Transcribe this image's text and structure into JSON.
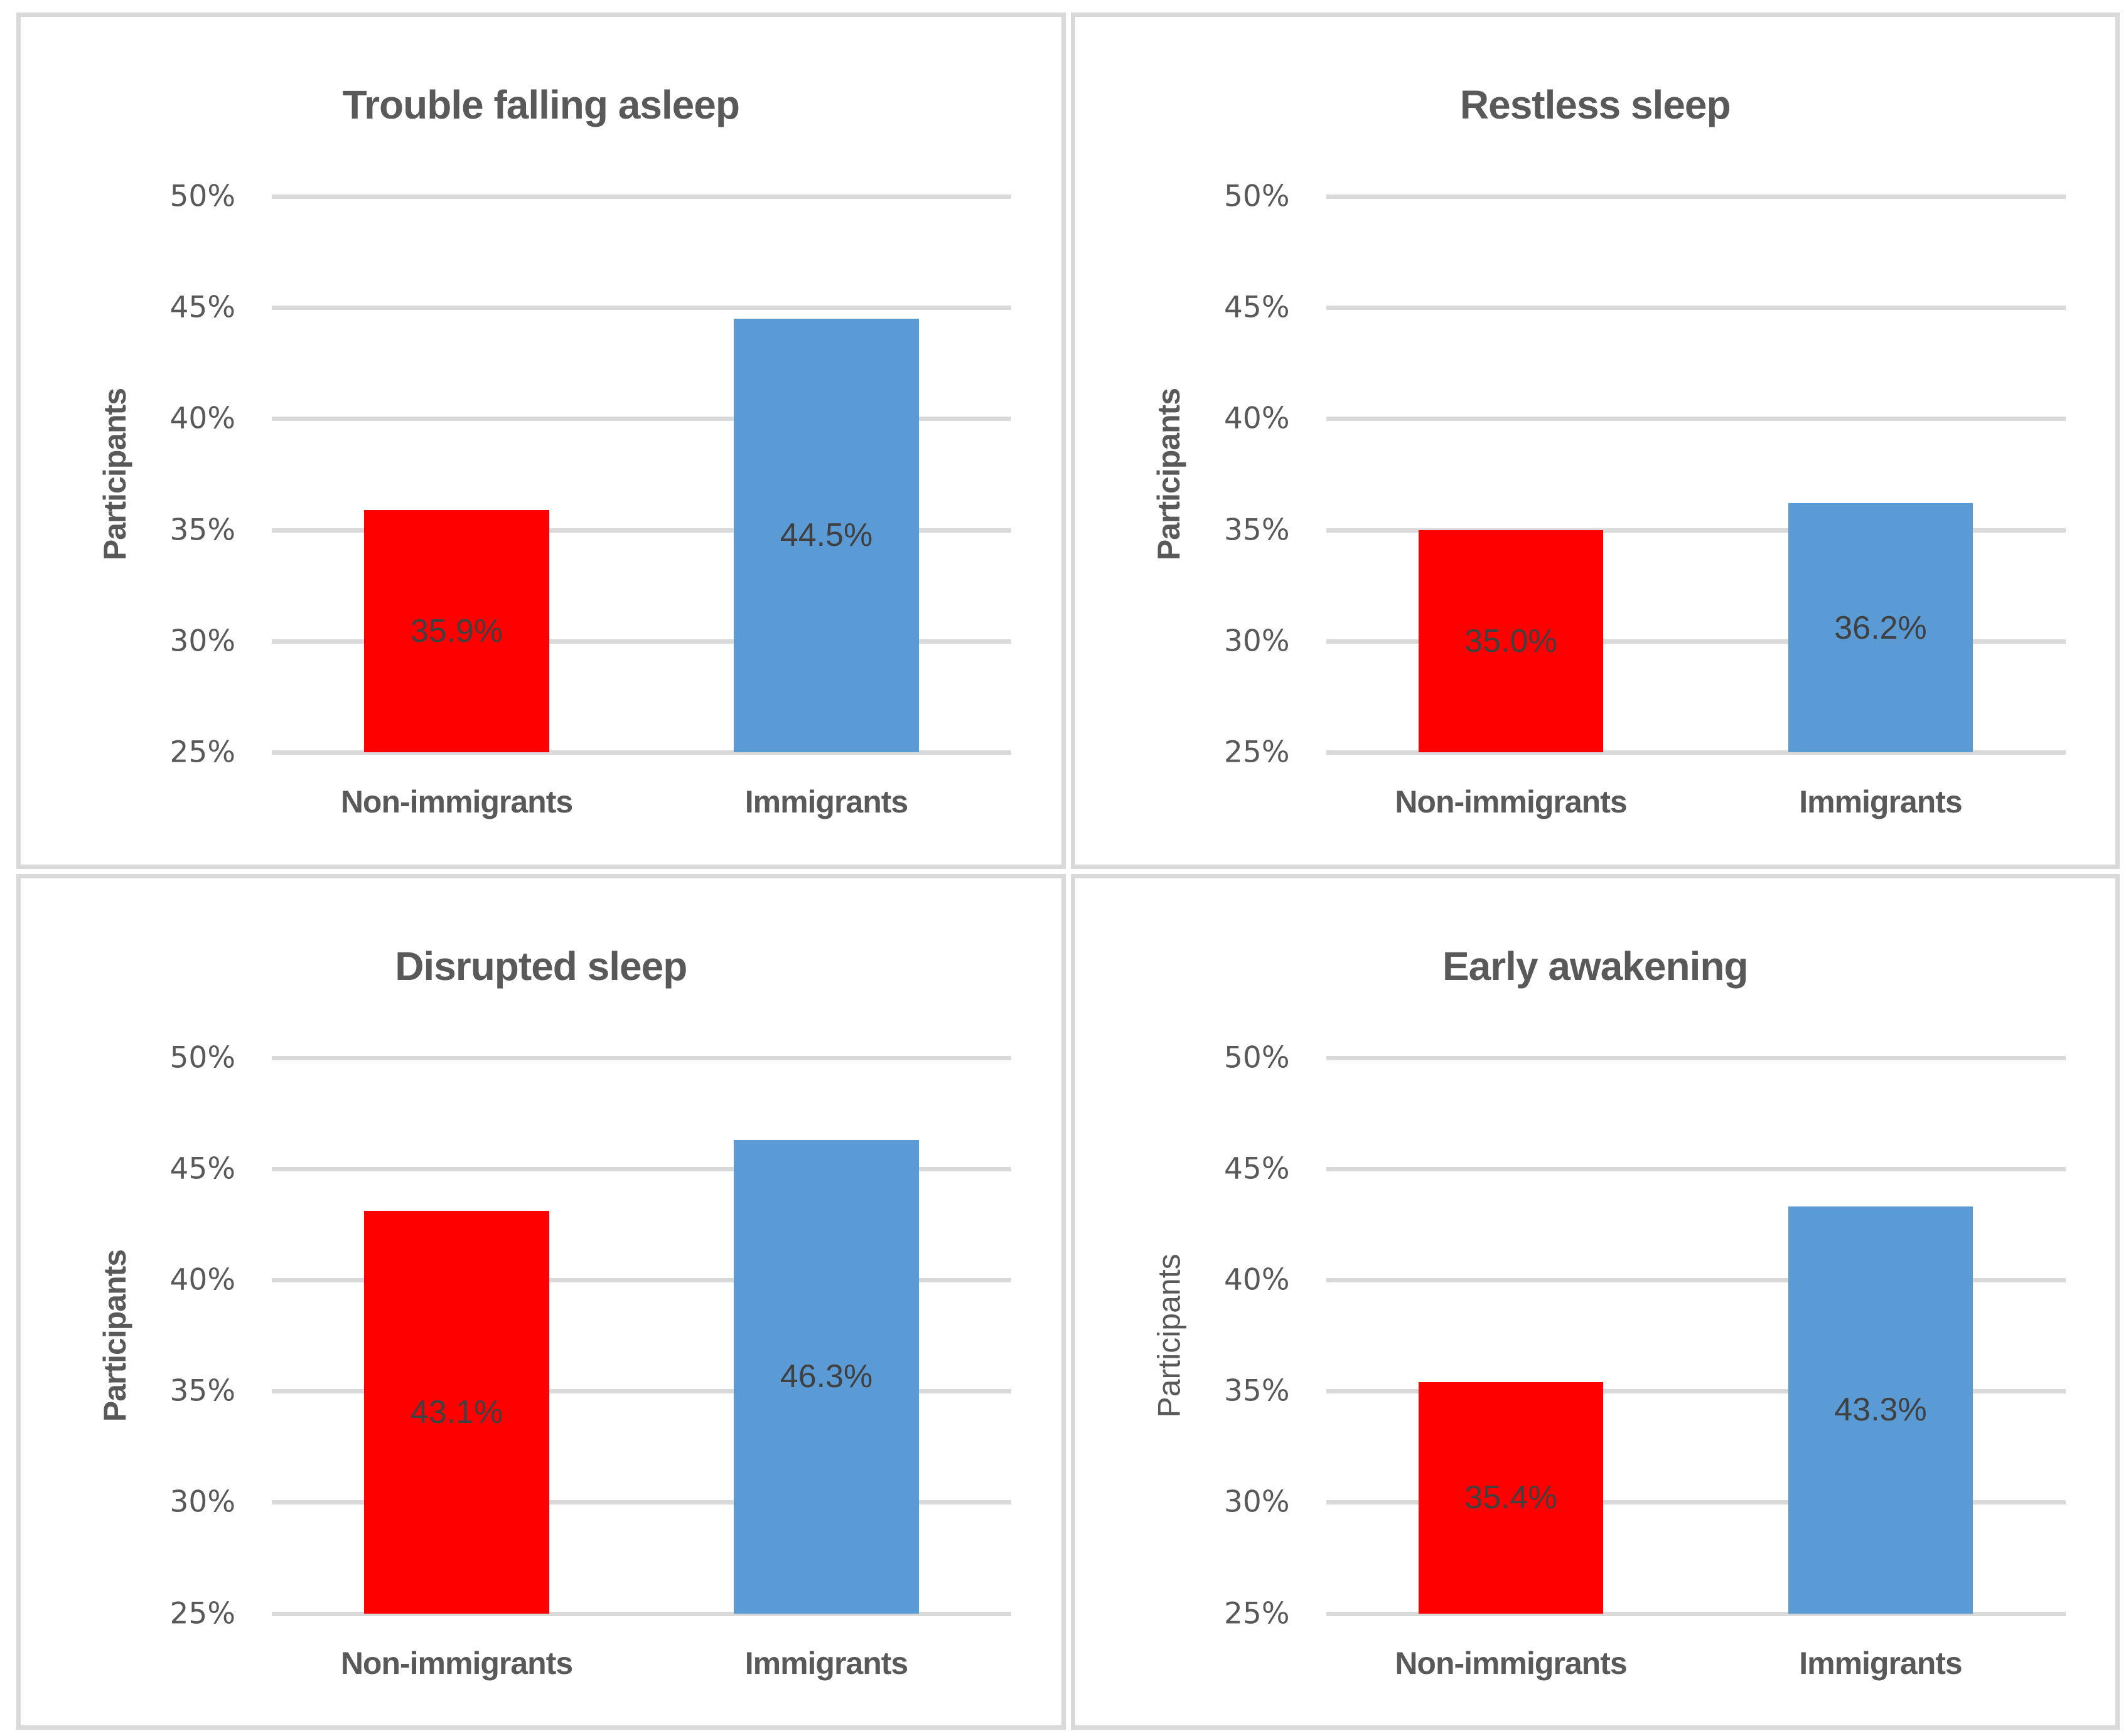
{
  "style": {
    "text_color": "#595959",
    "data_label_color": "#404040",
    "grid_color": "#D9D9D9",
    "panel_border_color": "#D9D9D9",
    "background": "#FFFFFF",
    "non_immigrants_color": "#FF0000",
    "immigrants_color": "#5B9BD5"
  },
  "chart_data": [
    {
      "type": "bar",
      "title": "Trouble falling asleep",
      "ylabel": "Participants",
      "ylabel_bold": true,
      "categories": [
        "Non-immigrants",
        "Immigrants"
      ],
      "values": [
        35.9,
        44.5
      ],
      "value_labels": [
        "35.9%",
        "44.5%"
      ],
      "bar_colors": [
        "#FF0000",
        "#5B9BD5"
      ],
      "ylim": [
        25,
        50
      ],
      "ytick_step": 5,
      "ytick_labels": [
        "25%",
        "30%",
        "35%",
        "40%",
        "45%",
        "50%"
      ],
      "grid": true,
      "legend": "none"
    },
    {
      "type": "bar",
      "title": "Restless sleep",
      "ylabel": "Participants",
      "ylabel_bold": true,
      "categories": [
        "Non-immigrants",
        "Immigrants"
      ],
      "values": [
        35.0,
        36.2
      ],
      "value_labels": [
        "35.0%",
        "36.2%"
      ],
      "bar_colors": [
        "#FF0000",
        "#5B9BD5"
      ],
      "ylim": [
        25,
        50
      ],
      "ytick_step": 5,
      "ytick_labels": [
        "25%",
        "30%",
        "35%",
        "40%",
        "45%",
        "50%"
      ],
      "grid": true,
      "legend": "none"
    },
    {
      "type": "bar",
      "title": "Disrupted sleep",
      "ylabel": "Participants",
      "ylabel_bold": true,
      "categories": [
        "Non-immigrants",
        "Immigrants"
      ],
      "values": [
        43.1,
        46.3
      ],
      "value_labels": [
        "43.1%",
        "46.3%"
      ],
      "bar_colors": [
        "#FF0000",
        "#5B9BD5"
      ],
      "ylim": [
        25,
        50
      ],
      "ytick_step": 5,
      "ytick_labels": [
        "25%",
        "30%",
        "35%",
        "40%",
        "45%",
        "50%"
      ],
      "grid": true,
      "legend": "none"
    },
    {
      "type": "bar",
      "title": "Early awakening",
      "ylabel": "Participants",
      "ylabel_bold": false,
      "categories": [
        "Non-immigrants",
        "Immigrants"
      ],
      "values": [
        35.4,
        43.3
      ],
      "value_labels": [
        "35.4%",
        "43.3%"
      ],
      "bar_colors": [
        "#FF0000",
        "#5B9BD5"
      ],
      "ylim": [
        25,
        50
      ],
      "ytick_step": 5,
      "ytick_labels": [
        "25%",
        "30%",
        "35%",
        "40%",
        "45%",
        "50%"
      ],
      "grid": true,
      "legend": "none"
    }
  ]
}
